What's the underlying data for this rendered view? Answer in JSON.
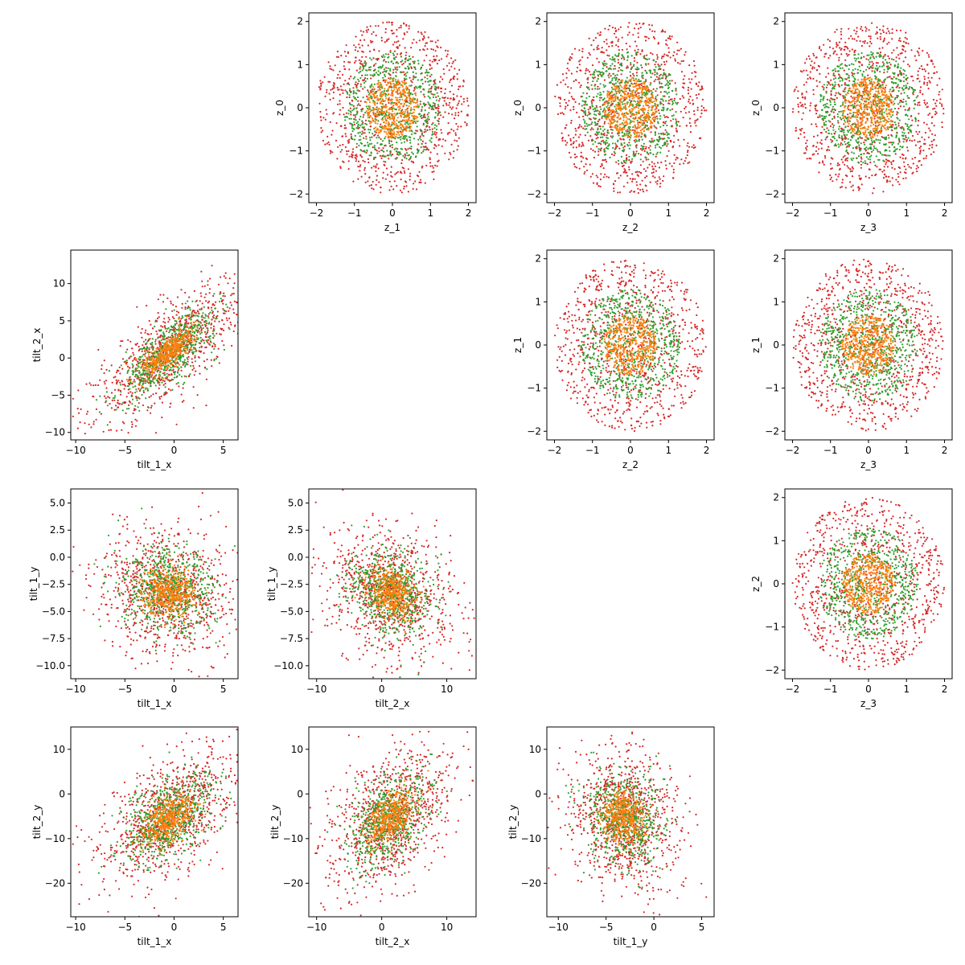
{
  "chart_data": {
    "type": "scatter",
    "description_series": [
      {
        "name": "",
        "color": "#d62728",
        "ring": "outer"
      },
      {
        "name": "",
        "color": "#2ca02c",
        "ring": "middle"
      },
      {
        "name": "",
        "color": "#ff7f0e",
        "ring": "inner"
      }
    ],
    "panels": [
      {
        "row": 0,
        "col": 1,
        "xlabel": "z_1",
        "ylabel": "z_0",
        "xlim": [
          -2.2,
          2.2
        ],
        "ylim": [
          -2.2,
          2.2
        ],
        "xticks": [
          -2,
          -1,
          0,
          1,
          2
        ],
        "yticks": [
          -2,
          -1,
          0,
          1,
          2
        ],
        "shape": "ring",
        "cx": 0,
        "cy": 0,
        "radii": [
          0.7,
          1.3,
          2.0
        ]
      },
      {
        "row": 0,
        "col": 2,
        "xlabel": "z_2",
        "ylabel": "z_0",
        "xlim": [
          -2.2,
          2.2
        ],
        "ylim": [
          -2.2,
          2.2
        ],
        "xticks": [
          -2,
          -1,
          0,
          1,
          2
        ],
        "yticks": [
          -2,
          -1,
          0,
          1,
          2
        ],
        "shape": "ring",
        "cx": 0,
        "cy": 0,
        "radii": [
          0.7,
          1.3,
          2.0
        ]
      },
      {
        "row": 0,
        "col": 3,
        "xlabel": "z_3",
        "ylabel": "z_0",
        "xlim": [
          -2.2,
          2.2
        ],
        "ylim": [
          -2.2,
          2.2
        ],
        "xticks": [
          -2,
          -1,
          0,
          1,
          2
        ],
        "yticks": [
          -2,
          -1,
          0,
          1,
          2
        ],
        "shape": "ring",
        "cx": 0,
        "cy": 0,
        "radii": [
          0.7,
          1.3,
          2.0
        ]
      },
      {
        "row": 1,
        "col": 0,
        "xlabel": "tilt_1_x",
        "ylabel": "tilt_2_x",
        "xlim": [
          -10.5,
          6.5
        ],
        "ylim": [
          -11,
          14.5
        ],
        "xticks": [
          -10,
          -5,
          0,
          5
        ],
        "yticks": [
          -10,
          -5,
          0,
          5,
          10
        ],
        "shape": "corr",
        "cx": -0.5,
        "cy": 0.8,
        "sx": 3.2,
        "sy": 4.0,
        "rho": 0.75
      },
      {
        "row": 1,
        "col": 2,
        "xlabel": "z_2",
        "ylabel": "z_1",
        "xlim": [
          -2.2,
          2.2
        ],
        "ylim": [
          -2.2,
          2.2
        ],
        "xticks": [
          -2,
          -1,
          0,
          1,
          2
        ],
        "yticks": [
          -2,
          -1,
          0,
          1,
          2
        ],
        "shape": "ring",
        "cx": 0,
        "cy": 0,
        "radii": [
          0.7,
          1.3,
          2.0
        ]
      },
      {
        "row": 1,
        "col": 3,
        "xlabel": "z_3",
        "ylabel": "z_1",
        "xlim": [
          -2.2,
          2.2
        ],
        "ylim": [
          -2.2,
          2.2
        ],
        "xticks": [
          -2,
          -1,
          0,
          1,
          2
        ],
        "yticks": [
          -2,
          -1,
          0,
          1,
          2
        ],
        "shape": "ring",
        "cx": 0,
        "cy": 0,
        "radii": [
          0.7,
          1.3,
          2.0
        ]
      },
      {
        "row": 2,
        "col": 0,
        "xlabel": "tilt_1_x",
        "ylabel": "tilt_1_y",
        "xlim": [
          -10.5,
          6.5
        ],
        "ylim": [
          -11.2,
          6.3
        ],
        "xticks": [
          -10,
          -5,
          0,
          5
        ],
        "yticks": [
          -10.0,
          -7.5,
          -5.0,
          -2.5,
          0.0,
          2.5,
          5.0
        ],
        "ytickfmt": 1,
        "shape": "corr",
        "cx": -0.5,
        "cy": -3.2,
        "sx": 3.2,
        "sy": 2.6,
        "rho": -0.1
      },
      {
        "row": 2,
        "col": 1,
        "xlabel": "tilt_2_x",
        "ylabel": "tilt_1_y",
        "xlim": [
          -11.2,
          14.5
        ],
        "ylim": [
          -11.2,
          6.3
        ],
        "xticks": [
          -10,
          0,
          10
        ],
        "yticks": [
          -10.0,
          -7.5,
          -5.0,
          -2.5,
          0.0,
          2.5,
          5.0
        ],
        "ytickfmt": 1,
        "shape": "corr",
        "cx": 1.5,
        "cy": -3.3,
        "sx": 4.2,
        "sy": 2.6,
        "rho": -0.2
      },
      {
        "row": 2,
        "col": 3,
        "xlabel": "z_3",
        "ylabel": "z_2",
        "xlim": [
          -2.2,
          2.2
        ],
        "ylim": [
          -2.2,
          2.2
        ],
        "xticks": [
          -2,
          -1,
          0,
          1,
          2
        ],
        "yticks": [
          -2,
          -1,
          0,
          1,
          2
        ],
        "shape": "ring",
        "cx": 0,
        "cy": 0,
        "radii": [
          0.7,
          1.3,
          2.0
        ]
      },
      {
        "row": 3,
        "col": 0,
        "xlabel": "tilt_1_x",
        "ylabel": "tilt_2_y",
        "xlim": [
          -10.5,
          6.5
        ],
        "ylim": [
          -27.5,
          15
        ],
        "xticks": [
          -10,
          -5,
          0,
          5
        ],
        "yticks": [
          -20,
          -10,
          0,
          10
        ],
        "shape": "corr",
        "cx": -0.5,
        "cy": -5.5,
        "sx": 3.2,
        "sy": 7.0,
        "rho": 0.55
      },
      {
        "row": 3,
        "col": 1,
        "xlabel": "tilt_2_x",
        "ylabel": "tilt_2_y",
        "xlim": [
          -11.2,
          14.5
        ],
        "ylim": [
          -27.5,
          15
        ],
        "xticks": [
          -10,
          0,
          10
        ],
        "yticks": [
          -20,
          -10,
          0,
          10
        ],
        "shape": "corr",
        "cx": 1.2,
        "cy": -5.5,
        "sx": 4.2,
        "sy": 7.0,
        "rho": 0.45
      },
      {
        "row": 3,
        "col": 2,
        "xlabel": "tilt_1_y",
        "ylabel": "tilt_2_y",
        "xlim": [
          -11.2,
          6.3
        ],
        "ylim": [
          -27.5,
          15
        ],
        "xticks": [
          -10,
          -5,
          0,
          5
        ],
        "yticks": [
          -20,
          -10,
          0,
          10
        ],
        "shape": "corr",
        "cx": -3.2,
        "cy": -5.5,
        "sx": 2.6,
        "sy": 7.0,
        "rho": -0.1
      }
    ]
  }
}
